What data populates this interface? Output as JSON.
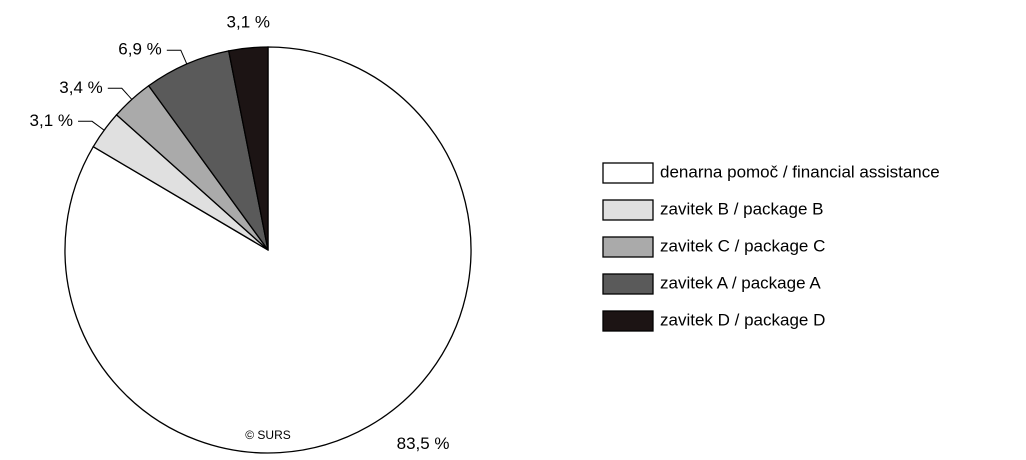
{
  "chart_data": {
    "type": "pie",
    "categories": [
      "denarna pomoč / financial assistance",
      "zavitek B / package B",
      "zavitek C / package C",
      "zavitek A / package A",
      "zavitek D / package D"
    ],
    "values": [
      83.5,
      3.1,
      3.4,
      6.9,
      3.1
    ],
    "value_labels": [
      "83,5 %",
      "3,1 %",
      "3,4 %",
      "6,9 %",
      "3,1 %"
    ],
    "colors": [
      "#ffffff",
      "#e0e0e0",
      "#aaaaaa",
      "#5a5a5a",
      "#1c1414"
    ],
    "legend": "right",
    "annotation": "© SURS"
  }
}
